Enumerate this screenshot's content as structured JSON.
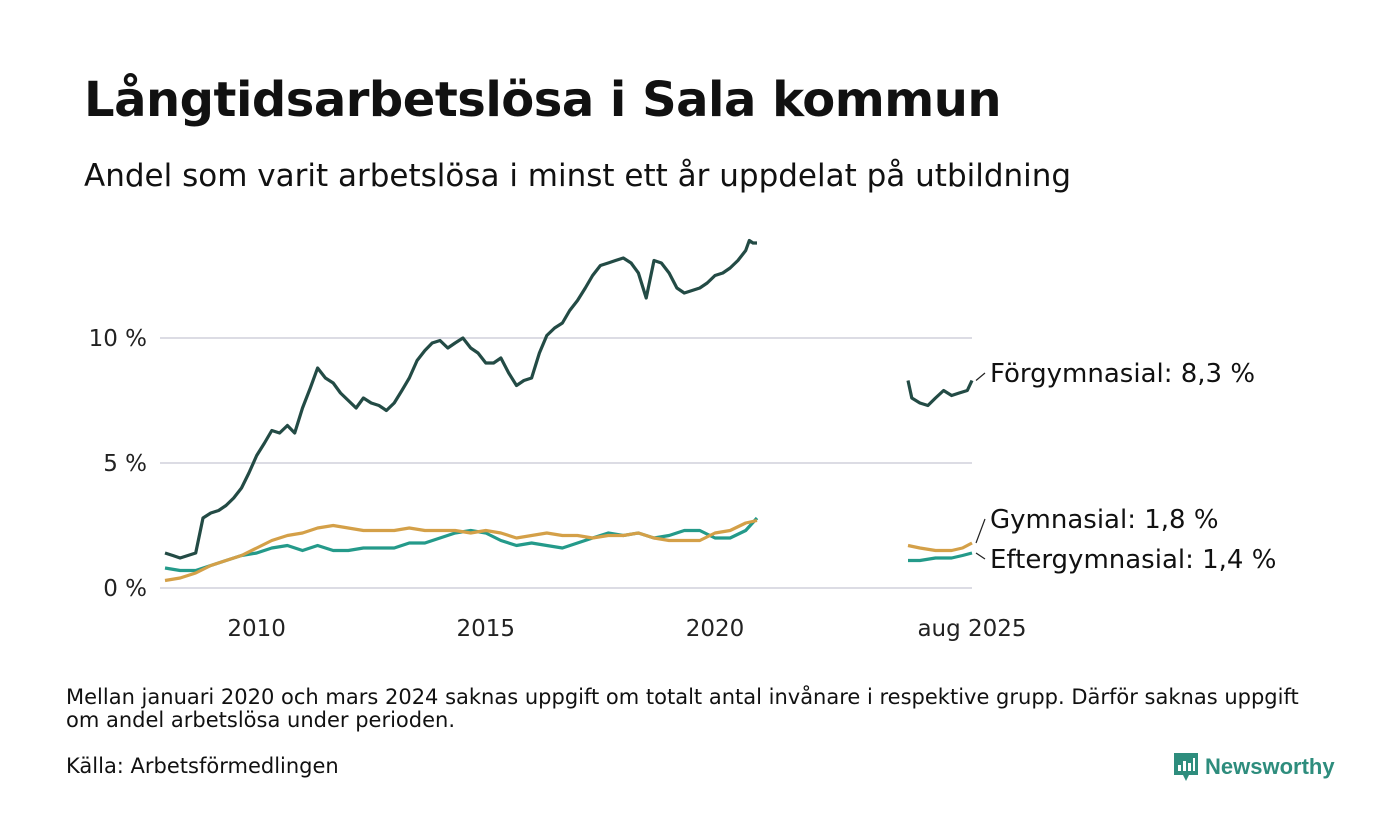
{
  "title": "Långtidsarbetslösa i Sala kommun",
  "subtitle": "Andel som varit arbetslösa i minst ett år uppdelat på utbildning",
  "note": "Mellan januari 2020 och mars 2024 saknas uppgift om totalt antal invånare i respektive grupp. Därför saknas uppgift om andel arbetslösa under perioden.",
  "source": "Källa: Arbetsförmedlingen",
  "brand": {
    "name": "Newsworthy",
    "icon": "newsworthy-logo-icon",
    "color": "#2e8d7d"
  },
  "chart_data": {
    "type": "line",
    "y_ticks": [
      0,
      5,
      10
    ],
    "y_tick_labels": [
      "0 %",
      "5 %",
      "10 %"
    ],
    "x_ticks": [
      2010,
      2015,
      2020,
      2025.6
    ],
    "x_tick_labels": [
      "2010",
      "2015",
      "2020",
      "aug 2025"
    ],
    "ylim": [
      0,
      14
    ],
    "xlim": [
      2008.0,
      2025.6
    ],
    "grid": true,
    "gap": [
      2020.917,
      2024.25
    ],
    "series": [
      {
        "name": "Förgymnasial",
        "label": "Förgymnasial: 8,3 %",
        "color": "#234b45",
        "segments": [
          [
            [
              2008.0,
              1.4
            ],
            [
              2008.17,
              1.3
            ],
            [
              2008.33,
              1.2
            ],
            [
              2008.5,
              1.3
            ],
            [
              2008.67,
              1.4
            ],
            [
              2008.83,
              2.8
            ],
            [
              2009.0,
              3.0
            ],
            [
              2009.17,
              3.1
            ],
            [
              2009.33,
              3.3
            ],
            [
              2009.5,
              3.6
            ],
            [
              2009.67,
              4.0
            ],
            [
              2009.83,
              4.6
            ],
            [
              2010.0,
              5.3
            ],
            [
              2010.17,
              5.8
            ],
            [
              2010.33,
              6.3
            ],
            [
              2010.5,
              6.2
            ],
            [
              2010.67,
              6.5
            ],
            [
              2010.83,
              6.2
            ],
            [
              2011.0,
              7.2
            ],
            [
              2011.17,
              8.0
            ],
            [
              2011.33,
              8.8
            ],
            [
              2011.5,
              8.4
            ],
            [
              2011.67,
              8.2
            ],
            [
              2011.83,
              7.8
            ],
            [
              2012.0,
              7.5
            ],
            [
              2012.17,
              7.2
            ],
            [
              2012.33,
              7.6
            ],
            [
              2012.5,
              7.4
            ],
            [
              2012.67,
              7.3
            ],
            [
              2012.83,
              7.1
            ],
            [
              2013.0,
              7.4
            ],
            [
              2013.17,
              7.9
            ],
            [
              2013.33,
              8.4
            ],
            [
              2013.5,
              9.1
            ],
            [
              2013.67,
              9.5
            ],
            [
              2013.83,
              9.8
            ],
            [
              2014.0,
              9.9
            ],
            [
              2014.17,
              9.6
            ],
            [
              2014.33,
              9.8
            ],
            [
              2014.5,
              10.0
            ],
            [
              2014.67,
              9.6
            ],
            [
              2014.83,
              9.4
            ],
            [
              2015.0,
              9.0
            ],
            [
              2015.17,
              9.0
            ],
            [
              2015.33,
              9.2
            ],
            [
              2015.5,
              8.6
            ],
            [
              2015.67,
              8.1
            ],
            [
              2015.83,
              8.3
            ],
            [
              2016.0,
              8.4
            ],
            [
              2016.17,
              9.4
            ],
            [
              2016.33,
              10.1
            ],
            [
              2016.5,
              10.4
            ],
            [
              2016.67,
              10.6
            ],
            [
              2016.83,
              11.1
            ],
            [
              2017.0,
              11.5
            ],
            [
              2017.17,
              12.0
            ],
            [
              2017.33,
              12.5
            ],
            [
              2017.5,
              12.9
            ],
            [
              2017.67,
              13.0
            ],
            [
              2017.83,
              13.1
            ],
            [
              2018.0,
              13.2
            ],
            [
              2018.17,
              13.0
            ],
            [
              2018.33,
              12.6
            ],
            [
              2018.5,
              11.6
            ],
            [
              2018.67,
              13.1
            ],
            [
              2018.83,
              13.0
            ],
            [
              2019.0,
              12.6
            ],
            [
              2019.17,
              12.0
            ],
            [
              2019.33,
              11.8
            ],
            [
              2019.5,
              11.9
            ],
            [
              2019.67,
              12.0
            ],
            [
              2019.83,
              12.2
            ],
            [
              2020.0,
              12.5
            ],
            [
              2020.17,
              12.6
            ],
            [
              2020.33,
              12.8
            ],
            [
              2020.5,
              13.1
            ],
            [
              2020.67,
              13.5
            ],
            [
              2020.75,
              13.9
            ],
            [
              2020.83,
              13.8
            ],
            [
              2020.917,
              13.8
            ]
          ],
          [
            [
              2024.25,
              8.3
            ],
            [
              2024.33,
              7.6
            ],
            [
              2024.5,
              7.4
            ],
            [
              2024.67,
              7.3
            ],
            [
              2024.83,
              7.6
            ],
            [
              2025.0,
              7.9
            ],
            [
              2025.17,
              7.7
            ],
            [
              2025.33,
              7.8
            ],
            [
              2025.5,
              7.9
            ],
            [
              2025.6,
              8.3
            ]
          ]
        ]
      },
      {
        "name": "Gymnasial",
        "label": "Gymnasial: 1,8 %",
        "color": "#d4a048",
        "segments": [
          [
            [
              2008.0,
              0.3
            ],
            [
              2008.33,
              0.4
            ],
            [
              2008.67,
              0.6
            ],
            [
              2009.0,
              0.9
            ],
            [
              2009.33,
              1.1
            ],
            [
              2009.67,
              1.3
            ],
            [
              2010.0,
              1.6
            ],
            [
              2010.33,
              1.9
            ],
            [
              2010.67,
              2.1
            ],
            [
              2011.0,
              2.2
            ],
            [
              2011.33,
              2.4
            ],
            [
              2011.67,
              2.5
            ],
            [
              2012.0,
              2.4
            ],
            [
              2012.33,
              2.3
            ],
            [
              2012.67,
              2.3
            ],
            [
              2013.0,
              2.3
            ],
            [
              2013.33,
              2.4
            ],
            [
              2013.67,
              2.3
            ],
            [
              2014.0,
              2.3
            ],
            [
              2014.33,
              2.3
            ],
            [
              2014.67,
              2.2
            ],
            [
              2015.0,
              2.3
            ],
            [
              2015.33,
              2.2
            ],
            [
              2015.67,
              2.0
            ],
            [
              2016.0,
              2.1
            ],
            [
              2016.33,
              2.2
            ],
            [
              2016.67,
              2.1
            ],
            [
              2017.0,
              2.1
            ],
            [
              2017.33,
              2.0
            ],
            [
              2017.67,
              2.1
            ],
            [
              2018.0,
              2.1
            ],
            [
              2018.33,
              2.2
            ],
            [
              2018.67,
              2.0
            ],
            [
              2019.0,
              1.9
            ],
            [
              2019.33,
              1.9
            ],
            [
              2019.67,
              1.9
            ],
            [
              2020.0,
              2.2
            ],
            [
              2020.33,
              2.3
            ],
            [
              2020.67,
              2.6
            ],
            [
              2020.917,
              2.7
            ]
          ],
          [
            [
              2024.25,
              1.7
            ],
            [
              2024.5,
              1.6
            ],
            [
              2024.83,
              1.5
            ],
            [
              2025.17,
              1.5
            ],
            [
              2025.4,
              1.6
            ],
            [
              2025.6,
              1.8
            ]
          ]
        ]
      },
      {
        "name": "Eftergymnasial",
        "label": "Eftergymnasial: 1,4 %",
        "color": "#249a8a",
        "segments": [
          [
            [
              2008.0,
              0.8
            ],
            [
              2008.33,
              0.7
            ],
            [
              2008.67,
              0.7
            ],
            [
              2009.0,
              0.9
            ],
            [
              2009.33,
              1.1
            ],
            [
              2009.67,
              1.3
            ],
            [
              2010.0,
              1.4
            ],
            [
              2010.33,
              1.6
            ],
            [
              2010.67,
              1.7
            ],
            [
              2011.0,
              1.5
            ],
            [
              2011.33,
              1.7
            ],
            [
              2011.67,
              1.5
            ],
            [
              2012.0,
              1.5
            ],
            [
              2012.33,
              1.6
            ],
            [
              2012.67,
              1.6
            ],
            [
              2013.0,
              1.6
            ],
            [
              2013.33,
              1.8
            ],
            [
              2013.67,
              1.8
            ],
            [
              2014.0,
              2.0
            ],
            [
              2014.33,
              2.2
            ],
            [
              2014.67,
              2.3
            ],
            [
              2015.0,
              2.2
            ],
            [
              2015.33,
              1.9
            ],
            [
              2015.67,
              1.7
            ],
            [
              2016.0,
              1.8
            ],
            [
              2016.33,
              1.7
            ],
            [
              2016.67,
              1.6
            ],
            [
              2017.0,
              1.8
            ],
            [
              2017.33,
              2.0
            ],
            [
              2017.67,
              2.2
            ],
            [
              2018.0,
              2.1
            ],
            [
              2018.33,
              2.2
            ],
            [
              2018.67,
              2.0
            ],
            [
              2019.0,
              2.1
            ],
            [
              2019.33,
              2.3
            ],
            [
              2019.67,
              2.3
            ],
            [
              2020.0,
              2.0
            ],
            [
              2020.33,
              2.0
            ],
            [
              2020.67,
              2.3
            ],
            [
              2020.917,
              2.8
            ]
          ],
          [
            [
              2024.25,
              1.1
            ],
            [
              2024.5,
              1.1
            ],
            [
              2024.83,
              1.2
            ],
            [
              2025.17,
              1.2
            ],
            [
              2025.4,
              1.3
            ],
            [
              2025.6,
              1.4
            ]
          ]
        ]
      }
    ]
  }
}
